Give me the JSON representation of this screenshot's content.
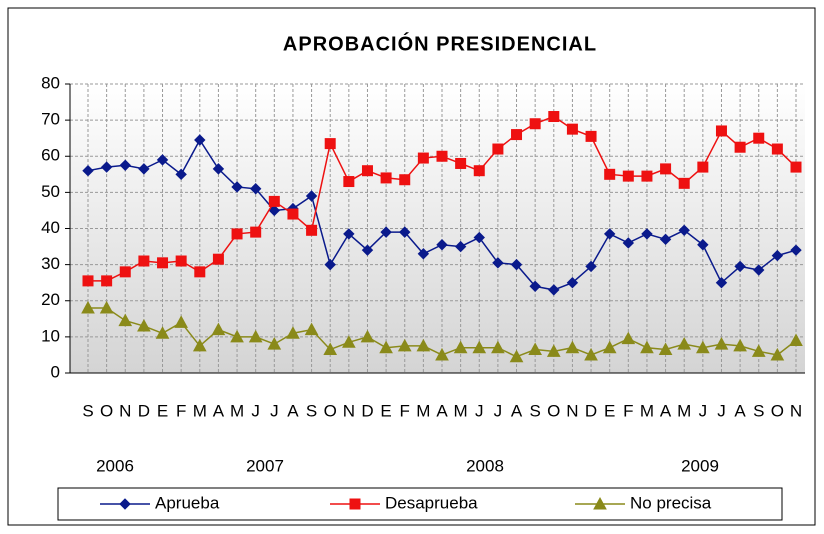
{
  "chart_data": {
    "type": "line",
    "title": "APROBACIÓN PRESIDENCIAL",
    "categories": [
      "S",
      "O",
      "N",
      "D",
      "E",
      "F",
      "M",
      "A",
      "M",
      "J",
      "J",
      "A",
      "S",
      "O",
      "N",
      "D",
      "E",
      "F",
      "M",
      "A",
      "M",
      "J",
      "J",
      "A",
      "S",
      "O",
      "N",
      "D",
      "E",
      "F",
      "M",
      "A",
      "M",
      "J",
      "J",
      "A",
      "S",
      "O",
      "N"
    ],
    "year_labels": [
      "2006",
      "2007",
      "2008",
      "2009"
    ],
    "ylim": [
      0,
      80
    ],
    "yticks": [
      0,
      10,
      20,
      30,
      40,
      50,
      60,
      70,
      80
    ],
    "grid": true,
    "legend": "bottom",
    "series": [
      {
        "name": "Aprueba",
        "color": "#0a1a8c",
        "marker": "diamond",
        "values": [
          56,
          57,
          57.5,
          56.5,
          59,
          55,
          64.5,
          56.5,
          51.5,
          51,
          45,
          45.5,
          49,
          30,
          38.5,
          34,
          39,
          39,
          33,
          35.5,
          35,
          37.5,
          30.5,
          30,
          24,
          23,
          25,
          29.5,
          38.5,
          36,
          38.5,
          37,
          39.5,
          35.5,
          25,
          29.5,
          28.5,
          32.5,
          34
        ]
      },
      {
        "name": "Desaprueba",
        "color": "#ee1111",
        "marker": "square",
        "values": [
          25.5,
          25.5,
          28,
          31,
          30.5,
          31,
          28,
          31.5,
          38.5,
          39,
          47.5,
          44,
          39.5,
          63.5,
          53,
          56,
          54,
          53.5,
          59.5,
          60,
          58,
          56,
          62,
          66,
          69,
          71,
          67.5,
          65.5,
          55,
          54.5,
          54.5,
          56.5,
          52.5,
          57,
          67,
          62.5,
          65,
          62,
          57
        ]
      },
      {
        "name": "No precisa",
        "color": "#8a8a1a",
        "marker": "triangle",
        "values": [
          18,
          18,
          14.5,
          13,
          11,
          14,
          7.5,
          12,
          10,
          10,
          8,
          11,
          12,
          6.5,
          8.5,
          10,
          7,
          7.5,
          7.5,
          5,
          7,
          7,
          7,
          4.5,
          6.5,
          6,
          7,
          5,
          7,
          9.5,
          7,
          6.5,
          8,
          7,
          8,
          7.5,
          6,
          5,
          9
        ]
      }
    ]
  }
}
